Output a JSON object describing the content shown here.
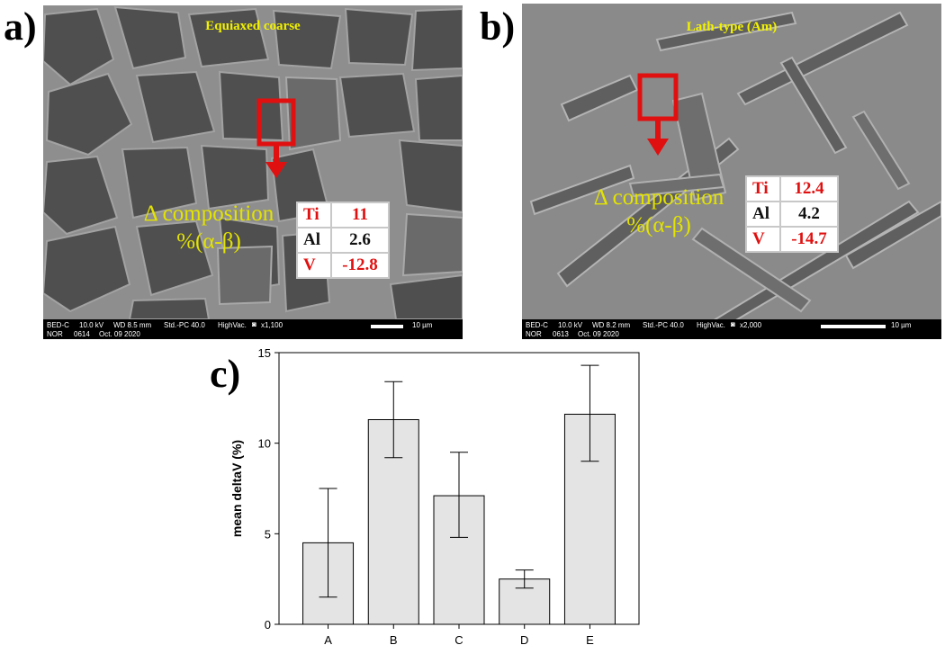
{
  "panels": {
    "a": {
      "letter": "a)",
      "title": "Equiaxed coarse",
      "delta_line1": "Δ composition",
      "delta_line2": "%(α-β)",
      "rows": [
        {
          "el": "Ti",
          "val": "11",
          "color": "#e01010"
        },
        {
          "el": "Al",
          "val": "2.6",
          "color": "#111111"
        },
        {
          "el": "V",
          "val": "-12.8",
          "color": "#e01010"
        }
      ],
      "info": {
        "mode": "BED-C",
        "kv": "10.0 kV",
        "wd": "WD 8.5 mm",
        "std": "Std.-PC 40.0",
        "vac": "HighVac.",
        "mag": "x1,100",
        "scale": "10 µm",
        "nor": "NOR",
        "num": "0614",
        "date": "Oct. 09 2020"
      }
    },
    "b": {
      "letter": "b)",
      "title": "Lath-type (Am)",
      "delta_line1": "Δ composition",
      "delta_line2": "%(α-β)",
      "rows": [
        {
          "el": "Ti",
          "val": "12.4",
          "color": "#e01010"
        },
        {
          "el": "Al",
          "val": "4.2",
          "color": "#111111"
        },
        {
          "el": "V",
          "val": "-14.7",
          "color": "#e01010"
        }
      ],
      "info": {
        "mode": "BED-C",
        "kv": "10.0 kV",
        "wd": "WD 8.2 mm",
        "std": "Std.-PC 40.0",
        "vac": "HighVac.",
        "mag": "x2,000",
        "scale": "10 µm",
        "nor": "NOR",
        "num": "0613",
        "date": "Oct. 09 2020"
      }
    },
    "c": {
      "letter": "c)"
    }
  },
  "chart_data": {
    "type": "bar",
    "categories": [
      "A",
      "B",
      "C",
      "D",
      "E"
    ],
    "values": [
      4.5,
      11.3,
      7.1,
      2.5,
      11.6
    ],
    "error_low": [
      1.5,
      9.2,
      4.8,
      2.0,
      9.0
    ],
    "error_high": [
      7.5,
      13.4,
      9.5,
      3.0,
      14.3
    ],
    "ylabel": "mean deltaV (%)",
    "xlabel": "",
    "ylim": [
      0,
      15
    ],
    "yticks": [
      0,
      5,
      10,
      15
    ],
    "bar_color": "#e4e4e4",
    "grid": false
  },
  "colors": {
    "highlight": "#e01010",
    "label_yellow": "#e3e300"
  }
}
